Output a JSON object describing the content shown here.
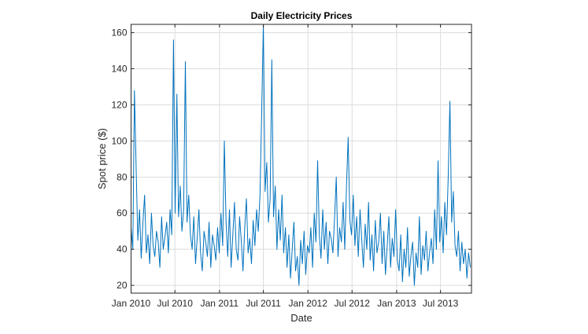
{
  "chart_data": {
    "type": "line",
    "title": "Daily Electricity Prices",
    "xlabel": "Date",
    "ylabel": "Spot price ($)",
    "x_start": "2010-01-01",
    "x_step_days": 7,
    "xlim_days": [
      0,
      1405
    ],
    "ylim": [
      15.7,
      164.6
    ],
    "yticks": [
      20,
      40,
      60,
      80,
      100,
      120,
      140,
      160
    ],
    "xticks": [
      {
        "label": "Jan 2010",
        "day": 0
      },
      {
        "label": "Jul 2010",
        "day": 181
      },
      {
        "label": "Jan 2011",
        "day": 365
      },
      {
        "label": "Jul 2011",
        "day": 546
      },
      {
        "label": "Jan 2012",
        "day": 730
      },
      {
        "label": "Jul 2012",
        "day": 912
      },
      {
        "label": "Jan 2013",
        "day": 1096
      },
      {
        "label": "Jul 2013",
        "day": 1277
      }
    ],
    "grid": true,
    "series": [
      {
        "name": "Spot price",
        "color": "#0072BD",
        "values": [
          52,
          40,
          128,
          84,
          45,
          62,
          35,
          55,
          70,
          38,
          48,
          32,
          60,
          42,
          36,
          50,
          44,
          30,
          58,
          40,
          47,
          55,
          38,
          62,
          48,
          156,
          60,
          126,
          58,
          75,
          50,
          62,
          144,
          55,
          70,
          48,
          40,
          58,
          32,
          46,
          62,
          38,
          28,
          50,
          44,
          36,
          55,
          30,
          48,
          42,
          34,
          52,
          38,
          60,
          42,
          100,
          55,
          36,
          62,
          30,
          48,
          66,
          40,
          34,
          58,
          44,
          28,
          52,
          68,
          38,
          46,
          32,
          56,
          42,
          62,
          50,
          70,
          115,
          165,
          72,
          88,
          55,
          68,
          145,
          58,
          75,
          40,
          62,
          45,
          70,
          38,
          52,
          30,
          48,
          24,
          40,
          55,
          28,
          36,
          20,
          45,
          32,
          50,
          26,
          42,
          38,
          52,
          30,
          60,
          44,
          89,
          48,
          35,
          62,
          40,
          55,
          32,
          50,
          46,
          38,
          58,
          80,
          36,
          52,
          44,
          66,
          40,
          75,
          102,
          56,
          48,
          70,
          42,
          58,
          36,
          62,
          45,
          30,
          54,
          40,
          66,
          34,
          48,
          28,
          56,
          38,
          44,
          60,
          32,
          50,
          26,
          42,
          58,
          30,
          46,
          36,
          62,
          34,
          28,
          48,
          22,
          40,
          30,
          52,
          25,
          36,
          44,
          20,
          38,
          30,
          58,
          26,
          42,
          34,
          50,
          28,
          38,
          46,
          32,
          62,
          40,
          89,
          44,
          58,
          38,
          66,
          48,
          80,
          122,
          55,
          72,
          42,
          36,
          50,
          28,
          44,
          32,
          40,
          24,
          38,
          30
        ]
      }
    ]
  }
}
